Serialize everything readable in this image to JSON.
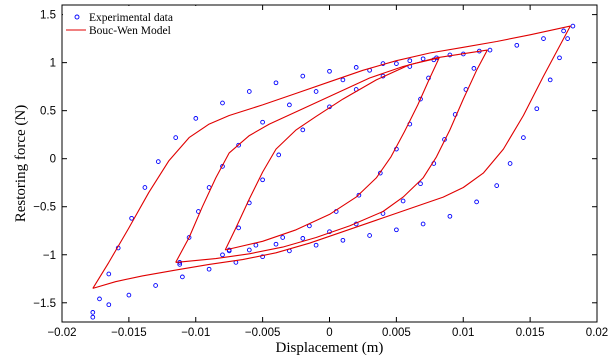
{
  "chart_data": {
    "type": "scatter",
    "xlabel": "Displacement (m)",
    "ylabel": "Restoring force (N)",
    "xlim": [
      -0.02,
      0.02
    ],
    "ylim": [
      -1.7,
      1.6
    ],
    "xticks": [
      -0.02,
      -0.015,
      -0.01,
      -0.005,
      0,
      0.005,
      0.01,
      0.015,
      0.02
    ],
    "xtick_labels": [
      "−0.02",
      "−0.015",
      "−0.01",
      "−0.005",
      "0",
      "0.005",
      "0.01",
      "0.015",
      "0.02"
    ],
    "yticks": [
      -1.5,
      -1,
      -0.5,
      0,
      0.5,
      1,
      1.5
    ],
    "ytick_labels": [
      "−1.5",
      "−1",
      "−0.5",
      "0",
      "0.5",
      "1",
      "1.5"
    ],
    "grid": false,
    "legend_position": "top-left",
    "colors": {
      "experimental": "#0000ff",
      "model": "#e00000",
      "axes": "#000000"
    },
    "series": [
      {
        "name": "Experimental data",
        "kind": "markers",
        "loops": [
          [
            [
              -0.0177,
              -1.65
            ],
            [
              -0.0172,
              -1.46
            ],
            [
              -0.0165,
              -1.2
            ],
            [
              -0.0158,
              -0.93
            ],
            [
              -0.0148,
              -0.62
            ],
            [
              -0.0138,
              -0.3
            ],
            [
              -0.0128,
              -0.03
            ],
            [
              -0.0115,
              0.22
            ],
            [
              -0.01,
              0.42
            ],
            [
              -0.008,
              0.58
            ],
            [
              -0.006,
              0.7
            ],
            [
              -0.004,
              0.79
            ],
            [
              -0.002,
              0.86
            ],
            [
              0.0,
              0.91
            ],
            [
              0.002,
              0.95
            ],
            [
              0.004,
              0.99
            ],
            [
              0.006,
              1.02
            ],
            [
              0.008,
              1.05
            ],
            [
              0.01,
              1.09
            ],
            [
              0.012,
              1.13
            ],
            [
              0.014,
              1.18
            ],
            [
              0.016,
              1.25
            ],
            [
              0.0175,
              1.33
            ],
            [
              0.0182,
              1.38
            ],
            [
              0.0178,
              1.25
            ],
            [
              0.0172,
              1.05
            ],
            [
              0.0165,
              0.82
            ],
            [
              0.0155,
              0.52
            ],
            [
              0.0145,
              0.22
            ],
            [
              0.0135,
              -0.05
            ],
            [
              0.0125,
              -0.28
            ],
            [
              0.011,
              -0.45
            ],
            [
              0.009,
              -0.6
            ],
            [
              0.007,
              -0.68
            ],
            [
              0.005,
              -0.74
            ],
            [
              0.003,
              -0.8
            ],
            [
              0.001,
              -0.85
            ],
            [
              -0.001,
              -0.9
            ],
            [
              -0.003,
              -0.96
            ],
            [
              -0.005,
              -1.02
            ],
            [
              -0.007,
              -1.08
            ],
            [
              -0.009,
              -1.15
            ],
            [
              -0.011,
              -1.23
            ],
            [
              -0.013,
              -1.32
            ],
            [
              -0.015,
              -1.42
            ],
            [
              -0.0165,
              -1.52
            ],
            [
              -0.0177,
              -1.6
            ]
          ],
          [
            [
              -0.0112,
              -1.08
            ],
            [
              -0.0105,
              -0.82
            ],
            [
              -0.0098,
              -0.55
            ],
            [
              -0.009,
              -0.3
            ],
            [
              -0.008,
              -0.08
            ],
            [
              -0.0068,
              0.14
            ],
            [
              -0.005,
              0.38
            ],
            [
              -0.003,
              0.56
            ],
            [
              -0.001,
              0.7
            ],
            [
              0.001,
              0.82
            ],
            [
              0.003,
              0.92
            ],
            [
              0.005,
              0.99
            ],
            [
              0.007,
              1.04
            ],
            [
              0.009,
              1.08
            ],
            [
              0.0112,
              1.12
            ],
            [
              0.0108,
              0.94
            ],
            [
              0.0102,
              0.72
            ],
            [
              0.0094,
              0.46
            ],
            [
              0.0086,
              0.2
            ],
            [
              0.0078,
              -0.05
            ],
            [
              0.0068,
              -0.26
            ],
            [
              0.0055,
              -0.44
            ],
            [
              0.004,
              -0.57
            ],
            [
              0.002,
              -0.68
            ],
            [
              0.0,
              -0.76
            ],
            [
              -0.002,
              -0.83
            ],
            [
              -0.004,
              -0.89
            ],
            [
              -0.006,
              -0.95
            ],
            [
              -0.008,
              -1.0
            ],
            [
              -0.0112,
              -1.1
            ]
          ],
          [
            [
              -0.0075,
              -0.95
            ],
            [
              -0.0068,
              -0.72
            ],
            [
              -0.006,
              -0.46
            ],
            [
              -0.005,
              -0.22
            ],
            [
              -0.0038,
              0.04
            ],
            [
              -0.002,
              0.3
            ],
            [
              0.0,
              0.54
            ],
            [
              0.002,
              0.72
            ],
            [
              0.004,
              0.86
            ],
            [
              0.006,
              0.96
            ],
            [
              0.0078,
              1.03
            ],
            [
              0.0074,
              0.84
            ],
            [
              0.0068,
              0.62
            ],
            [
              0.006,
              0.36
            ],
            [
              0.005,
              0.1
            ],
            [
              0.0038,
              -0.15
            ],
            [
              0.0022,
              -0.38
            ],
            [
              0.0005,
              -0.55
            ],
            [
              -0.0015,
              -0.7
            ],
            [
              -0.0035,
              -0.82
            ],
            [
              -0.0055,
              -0.9
            ],
            [
              -0.0075,
              -0.96
            ]
          ]
        ]
      },
      {
        "name": "Bouc-Wen Model",
        "kind": "line",
        "loops": [
          [
            [
              -0.0177,
              -1.35
            ],
            [
              -0.0165,
              -1.08
            ],
            [
              -0.015,
              -0.72
            ],
            [
              -0.0135,
              -0.35
            ],
            [
              -0.012,
              -0.02
            ],
            [
              -0.0105,
              0.22
            ],
            [
              -0.009,
              0.36
            ],
            [
              -0.0075,
              0.45
            ],
            [
              -0.005,
              0.56
            ],
            [
              -0.0025,
              0.68
            ],
            [
              0.0,
              0.8
            ],
            [
              0.0025,
              0.92
            ],
            [
              0.005,
              1.02
            ],
            [
              0.0075,
              1.1
            ],
            [
              0.01,
              1.16
            ],
            [
              0.0125,
              1.22
            ],
            [
              0.015,
              1.29
            ],
            [
              0.018,
              1.38
            ],
            [
              0.0172,
              1.17
            ],
            [
              0.016,
              0.86
            ],
            [
              0.0145,
              0.45
            ],
            [
              0.013,
              0.1
            ],
            [
              0.0115,
              -0.15
            ],
            [
              0.01,
              -0.3
            ],
            [
              0.0085,
              -0.4
            ],
            [
              0.006,
              -0.52
            ],
            [
              0.0035,
              -0.64
            ],
            [
              0.001,
              -0.76
            ],
            [
              -0.0015,
              -0.88
            ],
            [
              -0.004,
              -0.98
            ],
            [
              -0.0065,
              -1.05
            ],
            [
              -0.009,
              -1.1
            ],
            [
              -0.0115,
              -1.16
            ],
            [
              -0.014,
              -1.22
            ],
            [
              -0.016,
              -1.28
            ],
            [
              -0.0177,
              -1.35
            ]
          ],
          [
            [
              -0.0115,
              -1.08
            ],
            [
              -0.0105,
              -0.82
            ],
            [
              -0.0095,
              -0.5
            ],
            [
              -0.0085,
              -0.2
            ],
            [
              -0.0075,
              0.06
            ],
            [
              -0.006,
              0.24
            ],
            [
              -0.0045,
              0.36
            ],
            [
              -0.002,
              0.52
            ],
            [
              0.0005,
              0.68
            ],
            [
              0.003,
              0.84
            ],
            [
              0.0055,
              0.96
            ],
            [
              0.008,
              1.05
            ],
            [
              0.0118,
              1.13
            ],
            [
              0.011,
              0.92
            ],
            [
              0.01,
              0.62
            ],
            [
              0.009,
              0.3
            ],
            [
              0.008,
              0.02
            ],
            [
              0.007,
              -0.2
            ],
            [
              0.0055,
              -0.4
            ],
            [
              0.004,
              -0.55
            ],
            [
              0.0015,
              -0.7
            ],
            [
              -0.001,
              -0.82
            ],
            [
              -0.0035,
              -0.92
            ],
            [
              -0.006,
              -0.99
            ],
            [
              -0.0085,
              -1.04
            ],
            [
              -0.0115,
              -1.08
            ]
          ],
          [
            [
              -0.0078,
              -0.95
            ],
            [
              -0.007,
              -0.72
            ],
            [
              -0.006,
              -0.42
            ],
            [
              -0.005,
              -0.14
            ],
            [
              -0.004,
              0.1
            ],
            [
              -0.0025,
              0.3
            ],
            [
              -0.001,
              0.44
            ],
            [
              0.001,
              0.62
            ],
            [
              0.0035,
              0.82
            ],
            [
              0.006,
              0.98
            ],
            [
              0.0082,
              1.05
            ],
            [
              0.0075,
              0.84
            ],
            [
              0.0066,
              0.56
            ],
            [
              0.0056,
              0.28
            ],
            [
              0.0046,
              0.02
            ],
            [
              0.0035,
              -0.2
            ],
            [
              0.002,
              -0.4
            ],
            [
              0.0,
              -0.58
            ],
            [
              -0.0025,
              -0.74
            ],
            [
              -0.005,
              -0.86
            ],
            [
              -0.0078,
              -0.95
            ]
          ]
        ]
      }
    ]
  }
}
